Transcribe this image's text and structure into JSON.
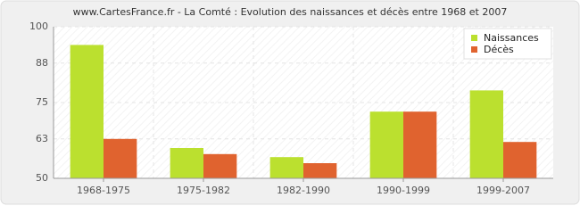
{
  "chart_data": {
    "type": "bar",
    "title": "www.CartesFrance.fr - La Comté : Evolution des naissances et décès entre 1968 et 2007",
    "categories": [
      "1968-1975",
      "1975-1982",
      "1982-1990",
      "1990-1999",
      "1999-2007"
    ],
    "series": [
      {
        "name": "Naissances",
        "color": "#bbe02f",
        "values": [
          94,
          60,
          57,
          72,
          79
        ]
      },
      {
        "name": "Décès",
        "color": "#e0632f",
        "values": [
          63,
          58,
          55,
          72,
          62
        ]
      }
    ],
    "ylim": [
      50,
      100
    ],
    "yticks": [
      50,
      63,
      75,
      88,
      100
    ],
    "grid": true,
    "legend": "top-right"
  }
}
